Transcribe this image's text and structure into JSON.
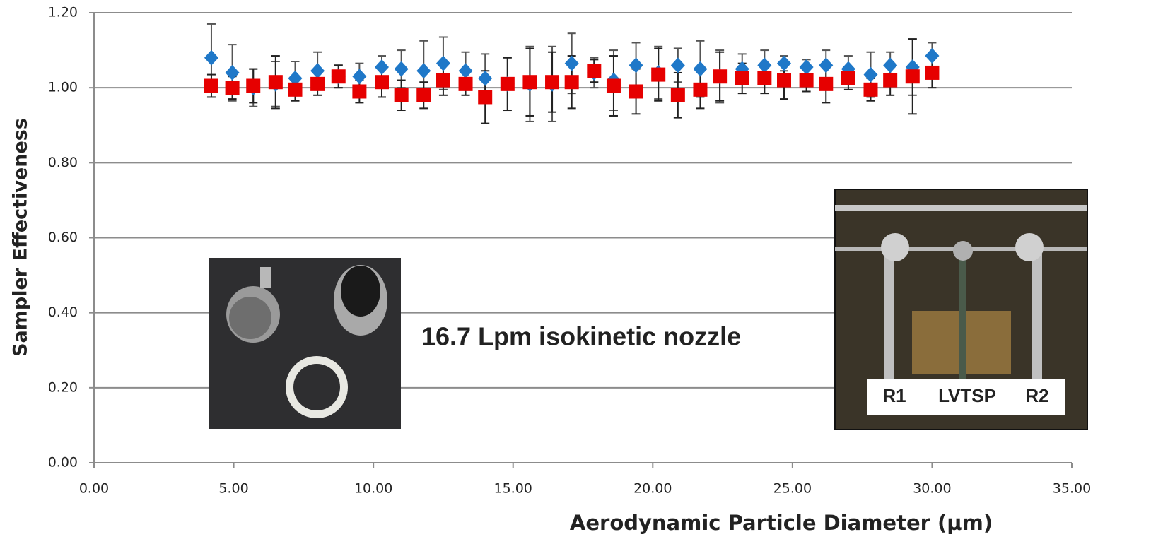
{
  "chart_data": {
    "type": "scatter",
    "xlabel": "Aerodynamic Particle Diameter (µm)",
    "ylabel": "Sampler Effectiveness",
    "annotations": [
      "16.7 Lpm isokinetic nozzle",
      "R1",
      "LVTSP",
      "R2"
    ],
    "xlim": [
      0,
      35
    ],
    "ylim": [
      0,
      1.2
    ],
    "xticks": [
      {
        "value": 0,
        "label": "0.00"
      },
      {
        "value": 5,
        "label": "5.00"
      },
      {
        "value": 10,
        "label": "10.00"
      },
      {
        "value": 15,
        "label": "15.00"
      },
      {
        "value": 20,
        "label": "20.00"
      },
      {
        "value": 25,
        "label": "25.00"
      },
      {
        "value": 30,
        "label": "30.00"
      },
      {
        "value": 35,
        "label": "35.00"
      }
    ],
    "yticks": [
      {
        "value": 0,
        "label": "0.00"
      },
      {
        "value": 0.2,
        "label": "0.20"
      },
      {
        "value": 0.4,
        "label": "0.40"
      },
      {
        "value": 0.6,
        "label": "0.60"
      },
      {
        "value": 0.8,
        "label": "0.80"
      },
      {
        "value": 1,
        "label": "1.00"
      },
      {
        "value": 1.2,
        "label": "1.20"
      }
    ],
    "grid": true,
    "x": [
      4.2,
      4.95,
      5.7,
      6.5,
      7.2,
      8.0,
      8.75,
      9.5,
      10.3,
      11.0,
      11.8,
      12.5,
      13.3,
      14.0,
      14.8,
      15.6,
      16.4,
      17.1,
      17.9,
      18.6,
      19.4,
      20.2,
      20.9,
      21.7,
      22.4,
      23.2,
      24.0,
      24.7,
      25.5,
      26.2,
      27.0,
      27.8,
      28.5,
      29.3,
      30.0
    ],
    "series": [
      {
        "color": "#1f78c8",
        "marker": "diamond",
        "values": [
          1.08,
          1.04,
          1.0,
          1.01,
          1.025,
          1.045,
          1.03,
          1.03,
          1.055,
          1.05,
          1.045,
          1.065,
          1.045,
          1.025,
          1.01,
          1.01,
          1.01,
          1.065,
          1.04,
          1.02,
          1.06,
          1.04,
          1.06,
          1.05,
          1.03,
          1.05,
          1.06,
          1.065,
          1.055,
          1.06,
          1.05,
          1.035,
          1.06,
          1.055,
          1.085
        ],
        "errors": [
          0.09,
          0.075,
          0.05,
          0.06,
          0.045,
          0.05,
          0.03,
          0.035,
          0.03,
          0.05,
          0.08,
          0.07,
          0.05,
          0.065,
          0.07,
          0.1,
          0.1,
          0.08,
          0.04,
          0.08,
          0.06,
          0.07,
          0.045,
          0.075,
          0.07,
          0.04,
          0.04,
          0.02,
          0.02,
          0.04,
          0.035,
          0.06,
          0.035,
          0.075,
          0.035
        ]
      },
      {
        "color": "#e60000",
        "marker": "square",
        "values": [
          1.005,
          1.0,
          1.005,
          1.015,
          0.995,
          1.01,
          1.03,
          0.99,
          1.015,
          0.98,
          0.98,
          1.02,
          1.01,
          0.975,
          1.01,
          1.015,
          1.015,
          1.015,
          1.045,
          1.005,
          0.99,
          1.035,
          0.98,
          0.995,
          1.03,
          1.025,
          1.025,
          1.02,
          1.02,
          1.01,
          1.025,
          0.995,
          1.02,
          1.03,
          1.04
        ],
        "errors": [
          0.03,
          0.03,
          0.045,
          0.07,
          0.03,
          0.03,
          0.03,
          0.03,
          0.04,
          0.04,
          0.035,
          0.04,
          0.03,
          0.07,
          0.07,
          0.09,
          0.08,
          0.07,
          0.03,
          0.08,
          0.06,
          0.07,
          0.06,
          0.05,
          0.065,
          0.04,
          0.04,
          0.05,
          0.03,
          0.05,
          0.03,
          0.03,
          0.04,
          0.1,
          0.04
        ]
      }
    ]
  }
}
